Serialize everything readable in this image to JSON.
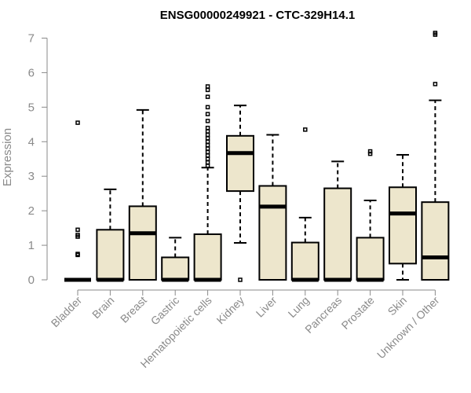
{
  "chart_data": {
    "type": "boxplot",
    "title": "ENSG00000249921 - CTC-329H14.1",
    "ylabel": "Expression",
    "xlabel": "",
    "ylim": [
      0,
      7
    ],
    "yticks": [
      "0",
      "1",
      "2",
      "3",
      "4",
      "5",
      "6",
      "7"
    ],
    "box_fill": "#ede6cc",
    "axis_color": "#8a8a8a",
    "grid": false,
    "categories": [
      {
        "name": "Bladder",
        "whisker_low": 0,
        "q1": 0,
        "median": 0,
        "q3": 0,
        "whisker_high": 0,
        "outliers": [
          0.72,
          0.75,
          1.25,
          1.3,
          1.45,
          4.55
        ]
      },
      {
        "name": "Brain",
        "whisker_low": 0,
        "q1": 0,
        "median": 0,
        "q3": 1.45,
        "whisker_high": 2.62,
        "outliers": []
      },
      {
        "name": "Breast",
        "whisker_low": 0,
        "q1": 0,
        "median": 1.35,
        "q3": 2.13,
        "whisker_high": 4.92,
        "outliers": []
      },
      {
        "name": "Gastric",
        "whisker_low": 0,
        "q1": 0,
        "median": 0,
        "q3": 0.65,
        "whisker_high": 1.22,
        "outliers": []
      },
      {
        "name": "Hematopoietic cells",
        "whisker_low": 0,
        "q1": 0,
        "median": 0,
        "q3": 1.32,
        "whisker_high": 3.25,
        "outliers": [
          3.3,
          3.4,
          3.5,
          3.6,
          3.7,
          3.8,
          3.9,
          4.0,
          4.1,
          4.2,
          4.3,
          4.4,
          4.6,
          4.8,
          5.0,
          5.3,
          5.5,
          5.6
        ]
      },
      {
        "name": "Kidney",
        "whisker_low": 1.07,
        "q1": 2.57,
        "median": 3.67,
        "q3": 4.17,
        "whisker_high": 5.05,
        "outliers": [
          0
        ]
      },
      {
        "name": "Liver",
        "whisker_low": 0,
        "q1": 0,
        "median": 2.12,
        "q3": 2.72,
        "whisker_high": 4.2,
        "outliers": []
      },
      {
        "name": "Lung",
        "whisker_low": 0,
        "q1": 0,
        "median": 0,
        "q3": 1.08,
        "whisker_high": 1.8,
        "outliers": [
          4.35
        ]
      },
      {
        "name": "Pancreas",
        "whisker_low": 0,
        "q1": 0,
        "median": 0,
        "q3": 2.65,
        "whisker_high": 3.43,
        "outliers": []
      },
      {
        "name": "Prostate",
        "whisker_low": 0,
        "q1": 0,
        "median": 0,
        "q3": 1.22,
        "whisker_high": 2.3,
        "outliers": [
          3.65,
          3.72
        ]
      },
      {
        "name": "Skin",
        "whisker_low": 0,
        "q1": 0.47,
        "median": 1.92,
        "q3": 2.68,
        "whisker_high": 3.62,
        "outliers": []
      },
      {
        "name": "Unknown / Other",
        "whisker_low": 0,
        "q1": 0,
        "median": 0.65,
        "q3": 2.25,
        "whisker_high": 5.2,
        "outliers": [
          5.67,
          7.1,
          7.15
        ]
      }
    ]
  }
}
